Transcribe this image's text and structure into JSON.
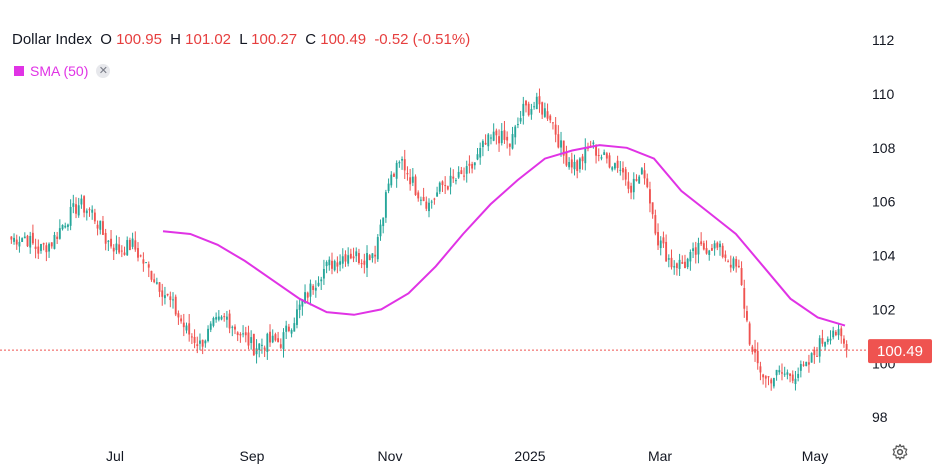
{
  "legend": {
    "symbol": "Dollar Index",
    "open_label": "O",
    "open": "100.95",
    "high_label": "H",
    "high": "101.02",
    "low_label": "L",
    "low": "100.27",
    "close_label": "C",
    "close": "100.49",
    "change": "-0.52 (-0.51%)"
  },
  "indicator": {
    "label": "SMA (50)",
    "close_symbol": "✕"
  },
  "settings_icon": "gear-icon",
  "colors": {
    "up": "#26a69a",
    "down": "#ef5350",
    "sma": "#e033e5",
    "price_line": "#ef5350",
    "text": "#131722"
  },
  "chart_data": {
    "type": "candlestick",
    "title": "Dollar Index",
    "y_ticks": [
      98,
      100,
      102,
      104,
      106,
      108,
      110,
      112
    ],
    "ylim": [
      96.3,
      113.3
    ],
    "x_ticks": [
      "Jul",
      "Sep",
      "Nov",
      "2025",
      "Mar",
      "May"
    ],
    "last_price": "100.49",
    "grid": false,
    "close_series_weekly": [
      104.6,
      104.7,
      104.2,
      104.5,
      105.3,
      105.9,
      105.6,
      104.6,
      104.2,
      104.4,
      103.6,
      102.9,
      102.1,
      101.2,
      100.7,
      101.4,
      101.7,
      101.1,
      100.6,
      100.8,
      100.8,
      101.7,
      102.6,
      103.4,
      103.8,
      104.1,
      103.9,
      104.2,
      106.7,
      107.5,
      106.5,
      105.9,
      106.6,
      106.8,
      107.1,
      108.0,
      108.5,
      108.1,
      109.4,
      109.6,
      109.2,
      107.7,
      107.3,
      108.1,
      107.6,
      107.4,
      106.6,
      107.1,
      104.6,
      103.7,
      103.7,
      104.2,
      104.4,
      104.0,
      103.4,
      100.3,
      99.4,
      99.6,
      99.6,
      99.8,
      100.7,
      101.3,
      100.5
    ],
    "sma50_points": [
      {
        "x": "Aug",
        "y": 104.9
      },
      {
        "x": "Aug",
        "y": 104.8
      },
      {
        "x": "Aug",
        "y": 104.4
      },
      {
        "x": "Sep",
        "y": 103.8
      },
      {
        "x": "Sep",
        "y": 103.1
      },
      {
        "x": "Oct",
        "y": 102.4
      },
      {
        "x": "Oct",
        "y": 101.9
      },
      {
        "x": "Oct",
        "y": 101.8
      },
      {
        "x": "Nov",
        "y": 102.0
      },
      {
        "x": "Nov",
        "y": 102.6
      },
      {
        "x": "Dec",
        "y": 103.6
      },
      {
        "x": "Dec",
        "y": 104.8
      },
      {
        "x": "Dec",
        "y": 105.9
      },
      {
        "x": "Jan",
        "y": 106.8
      },
      {
        "x": "Jan",
        "y": 107.6
      },
      {
        "x": "Feb",
        "y": 107.9
      },
      {
        "x": "Feb",
        "y": 108.1
      },
      {
        "x": "Mar",
        "y": 108.0
      },
      {
        "x": "Mar",
        "y": 107.6
      },
      {
        "x": "Mar",
        "y": 106.4
      },
      {
        "x": "Apr",
        "y": 105.6
      },
      {
        "x": "Apr",
        "y": 104.8
      },
      {
        "x": "Apr",
        "y": 103.6
      },
      {
        "x": "May",
        "y": 102.4
      },
      {
        "x": "May",
        "y": 101.7
      },
      {
        "x": "May",
        "y": 101.4
      }
    ]
  }
}
